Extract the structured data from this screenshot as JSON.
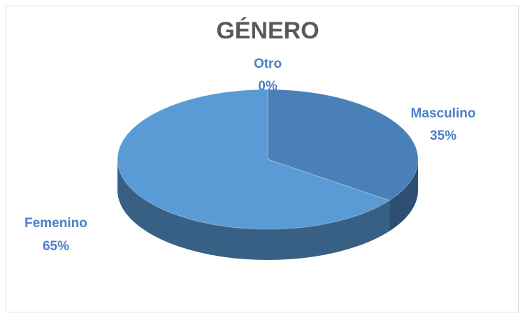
{
  "chart_data": {
    "type": "pie",
    "title": "GÉNERO",
    "categories": [
      "Masculino",
      "Femenino",
      "Otro"
    ],
    "values": [
      35,
      65,
      0
    ],
    "value_labels": [
      "35%",
      "65%",
      "0%"
    ],
    "colors": [
      "#4a80b8",
      "#5b9bd5",
      "#a5a5a5"
    ]
  }
}
